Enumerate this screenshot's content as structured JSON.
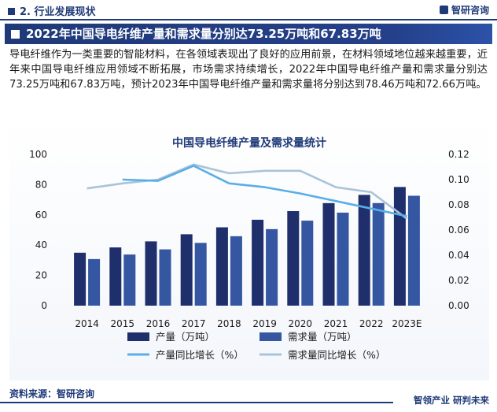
{
  "header": {
    "section": "2. 行业发展现状",
    "brand": "智研咨询"
  },
  "banner": {
    "title": "2022年中国导电纤维产量和需求量分别达73.25万吨和67.83万吨"
  },
  "body": {
    "paragraph": "导电纤维作为一类重要的智能材料，在各领域表现出了良好的应用前景，在材料领域地位越来越重要，近年来中国导电纤维应用领域不断拓展，市场需求持续增长，2022年中国导电纤维产量和需求量分别达73.25万吨和67.83万吨，预计2023年中国导电纤维产量和需求量将分别达到78.46万吨和72.66万吨。"
  },
  "footer": {
    "source": "资料来源：智研咨询",
    "slogan": "智领产业  研判未来"
  },
  "colors": {
    "navy": "#1f3a78",
    "bar_production": "#1f2f6b",
    "bar_demand": "#3556a0",
    "line_production": "#5aaee6",
    "line_demand": "#a9c3d9"
  },
  "chart_data": {
    "type": "bar",
    "title": "中国导电纤维产量及需求量统计",
    "categories": [
      "2014",
      "2015",
      "2016",
      "2017",
      "2018",
      "2019",
      "2020",
      "2021",
      "2022",
      "2023E"
    ],
    "ylim_left": [
      0,
      100
    ],
    "yticks_left": [
      "0",
      "20",
      "40",
      "60",
      "80",
      "100"
    ],
    "ylim_right": [
      0,
      0.12
    ],
    "yticks_right": [
      "0.00",
      "0.02",
      "0.04",
      "0.06",
      "0.08",
      "0.10",
      "0.12"
    ],
    "grid": false,
    "legend_position": "bottom",
    "series": [
      {
        "name": "产量（万吨）",
        "kind": "bar",
        "axis": "left",
        "values": [
          35.0,
          38.5,
          42.5,
          47.2,
          51.8,
          56.8,
          62.5,
          67.8,
          73.25,
          78.46
        ]
      },
      {
        "name": "需求量（万吨）",
        "kind": "bar",
        "axis": "left",
        "values": [
          30.8,
          33.8,
          37.2,
          41.5,
          45.9,
          50.6,
          56.2,
          61.5,
          67.83,
          72.66
        ]
      },
      {
        "name": "产量同比增长（%）",
        "kind": "line",
        "axis": "right",
        "values": [
          null,
          0.1,
          0.099,
          0.111,
          0.097,
          0.094,
          0.089,
          0.083,
          0.077,
          0.071
        ]
      },
      {
        "name": "需求量同比增长（%）",
        "kind": "line",
        "axis": "right",
        "values": [
          0.093,
          0.097,
          0.1,
          0.112,
          0.105,
          0.107,
          0.107,
          0.094,
          0.09,
          0.069
        ]
      }
    ]
  }
}
